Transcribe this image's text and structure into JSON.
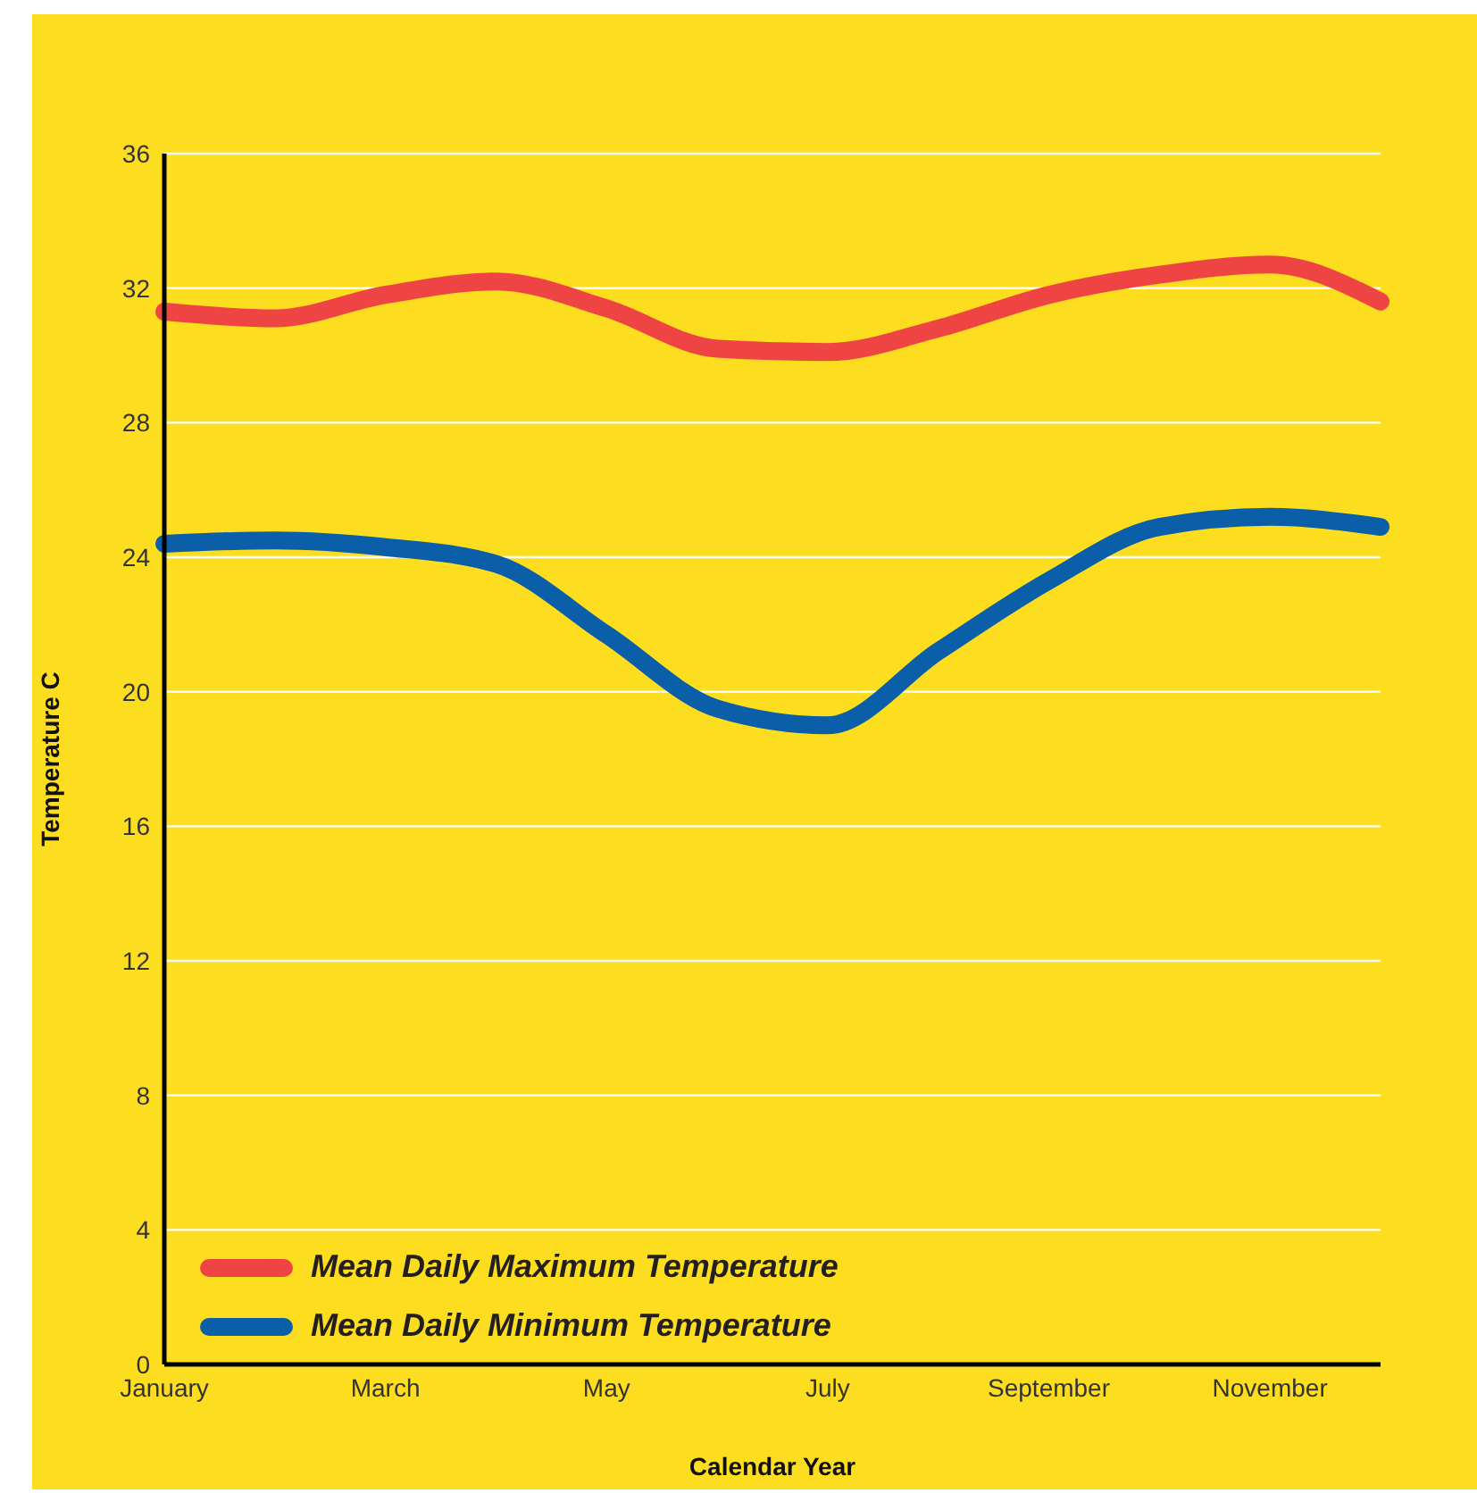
{
  "chart_data": {
    "type": "line",
    "xlabel": "Calendar Year",
    "ylabel": "Temperature C",
    "categories": [
      "January",
      null,
      "March",
      null,
      "May",
      null,
      "July",
      null,
      "September",
      null,
      "November",
      null
    ],
    "series": [
      {
        "name": "Mean Daily Maximum Temperature",
        "color": "#ef4444",
        "values": [
          31.3,
          31.1,
          31.8,
          32.2,
          31.4,
          30.2,
          30.1,
          30.8,
          31.8,
          32.4,
          32.7,
          31.6
        ]
      },
      {
        "name": "Mean Daily Minimum Temperature",
        "color": "#0a5fa8",
        "values": [
          24.4,
          24.5,
          24.3,
          23.8,
          21.7,
          19.5,
          19.0,
          21.2,
          23.3,
          24.9,
          25.2,
          24.9
        ]
      }
    ],
    "ylim": [
      0,
      36
    ],
    "yticks": [
      0,
      4,
      8,
      12,
      16,
      20,
      24,
      28,
      32,
      36
    ],
    "grid": "y",
    "legend": "bottom left",
    "marker": "none",
    "line_style": "solid"
  }
}
